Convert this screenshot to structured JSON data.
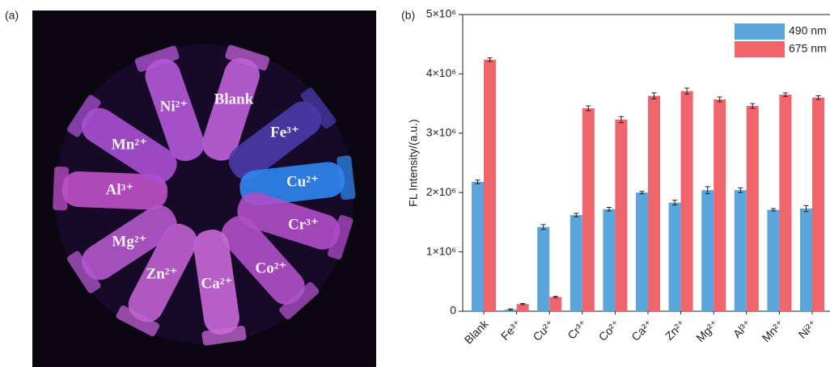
{
  "panel_labels": [
    "(a)",
    "(b)"
  ],
  "photo": {
    "labels": [
      "Blank",
      "Fe³⁺",
      "Cu²⁺",
      "Cr³⁺",
      "Co²⁺",
      "Ca²⁺",
      "Zn²⁺",
      "Mg²⁺",
      "Al³⁺",
      "Mn²⁺",
      "Ni²⁺"
    ]
  },
  "chart_data": {
    "type": "bar",
    "y_label": "FL Intensity/(a.u.)",
    "categories": [
      "Blank",
      "Fe³⁺",
      "Cu²⁺",
      "Cr³⁺",
      "Co²⁺",
      "Ca²⁺",
      "Zn²⁺",
      "Mg²⁺",
      "Al³⁺",
      "Mn²⁺",
      "Ni²⁺"
    ],
    "series": [
      {
        "name": "490 nm",
        "color": "#5aa5dc",
        "values": [
          2180000,
          30000,
          1420000,
          1620000,
          1720000,
          2000000,
          1830000,
          2040000,
          2040000,
          1710000,
          1730000
        ],
        "errors": [
          30000,
          10000,
          40000,
          30000,
          30000,
          20000,
          40000,
          60000,
          40000,
          20000,
          50000
        ]
      },
      {
        "name": "675 nm",
        "color": "#f0646b",
        "values": [
          4240000,
          120000,
          240000,
          3420000,
          3230000,
          3630000,
          3710000,
          3570000,
          3460000,
          3650000,
          3600000
        ],
        "errors": [
          30000,
          10000,
          10000,
          40000,
          50000,
          50000,
          50000,
          40000,
          40000,
          30000,
          30000
        ]
      }
    ],
    "ylim": [
      0,
      5000000
    ],
    "yticks": [
      0,
      {
        "value": 1000000,
        "label": "1×10⁶"
      },
      {
        "value": 2000000,
        "label": "2×10⁶"
      },
      {
        "value": 3000000,
        "label": "3×10⁶"
      },
      {
        "value": 4000000,
        "label": "4×10⁶"
      },
      {
        "value": 5000000,
        "label": "5×10⁶"
      }
    ],
    "legend": "upper-right"
  }
}
